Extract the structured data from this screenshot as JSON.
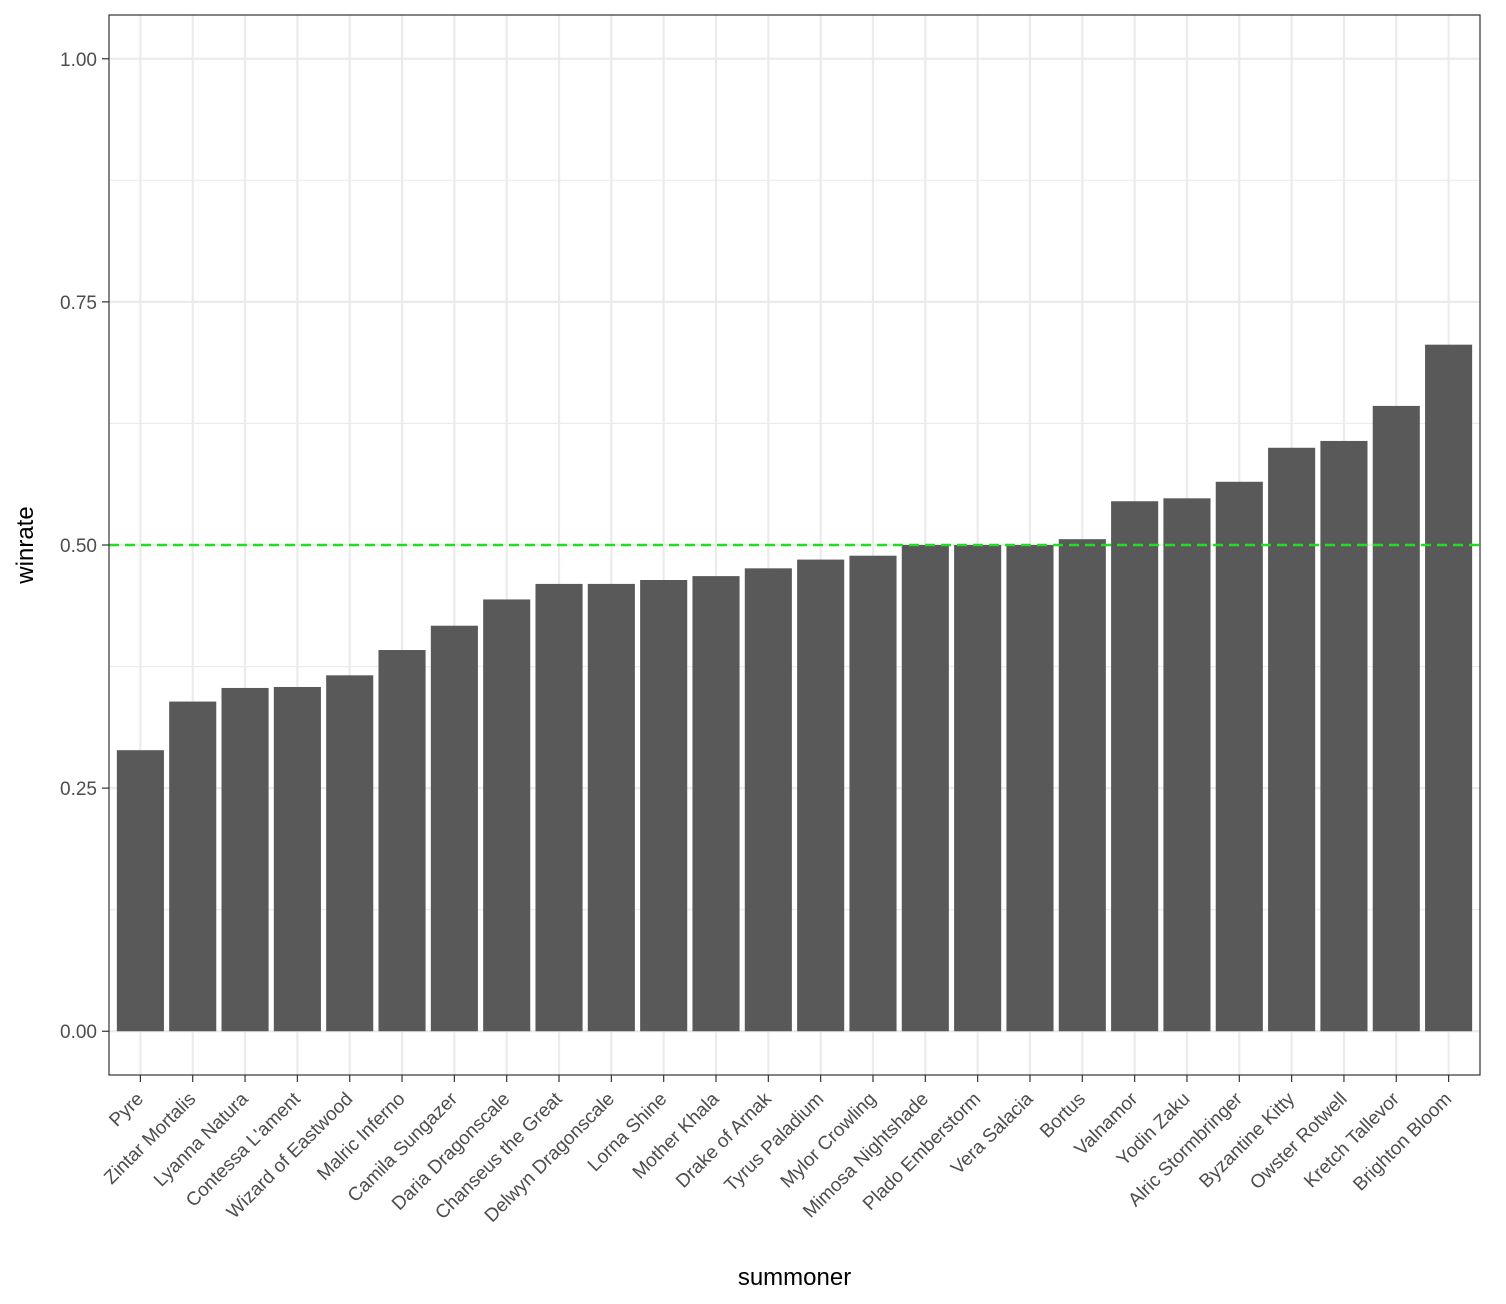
{
  "chart_data": {
    "type": "bar",
    "xlabel": "summoner",
    "ylabel": "winrate",
    "ylim": [
      -0.045,
      1.045
    ],
    "yticks": [
      0,
      0.25,
      0.5,
      0.75,
      1
    ],
    "ytick_labels": [
      "0.00",
      "0.25",
      "0.50",
      "0.75",
      "1.00"
    ],
    "grid": true,
    "reference_line": {
      "y": 0.5,
      "style": "dashed"
    },
    "categories": [
      "Pyre",
      "Zintar Mortalis",
      "Lyanna Natura",
      "Contessa L'ament",
      "Wizard of Eastwood",
      "Malric Inferno",
      "Camila Sungazer",
      "Daria Dragonscale",
      "Chanseus the Great",
      "Delwyn Dragonscale",
      "Lorna Shine",
      "Mother Khala",
      "Drake of Arnak",
      "Tyrus Paladium",
      "Mylor Crowling",
      "Mimosa Nightshade",
      "Plado Emberstorm",
      "Vera Salacia",
      "Bortus",
      "Valnamor",
      "Yodin Zaku",
      "Alric Stormbringer",
      "Byzantine Kitty",
      "Owster Rotwell",
      "Kretch Tallevor",
      "Brighton Bloom"
    ],
    "values": [
      0.289,
      0.339,
      0.353,
      0.354,
      0.366,
      0.392,
      0.417,
      0.444,
      0.46,
      0.46,
      0.464,
      0.468,
      0.476,
      0.485,
      0.489,
      0.5,
      0.5,
      0.5,
      0.506,
      0.545,
      0.548,
      0.565,
      0.6,
      0.607,
      0.643,
      0.706
    ],
    "colors": {
      "bar": "#595959",
      "reference_line": "#22dd22",
      "grid": "#ebebeb",
      "panel_border": "#333333"
    }
  }
}
